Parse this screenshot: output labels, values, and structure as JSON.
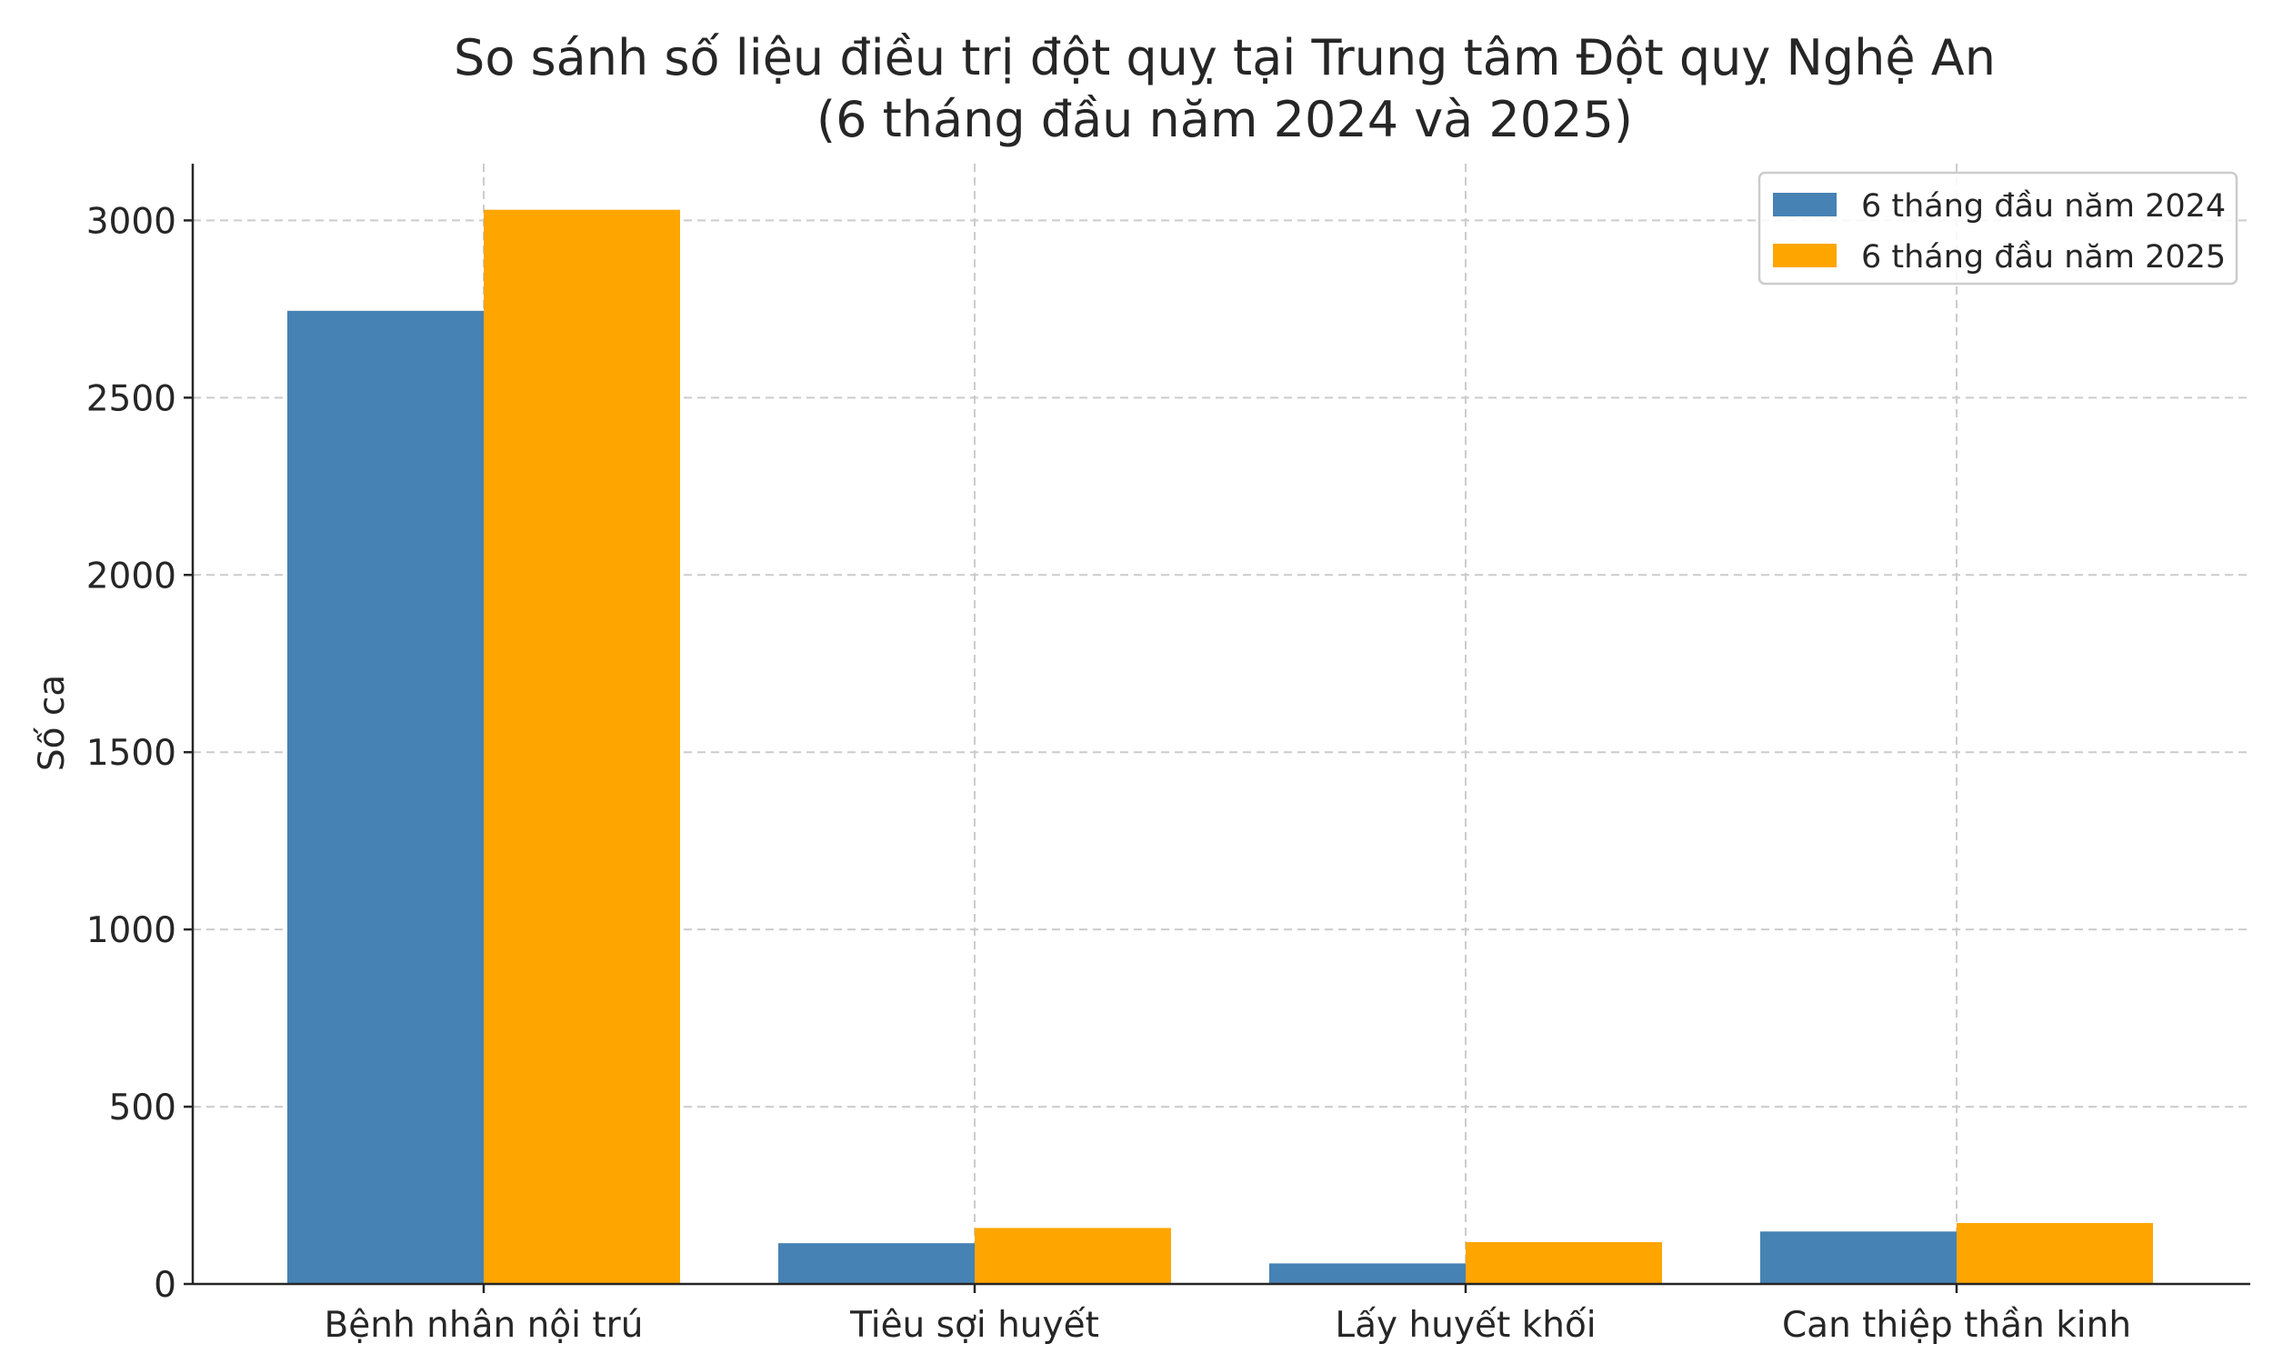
{
  "chart_data": {
    "type": "bar",
    "title": "So sánh số liệu điều trị đột quỵ tại Trung tâm Đột quỵ Nghệ An",
    "subtitle": "(6 tháng đầu năm 2024 và 2025)",
    "xlabel": "",
    "ylabel": "Số ca",
    "categories": [
      "Bệnh nhân nội trú",
      "Tiêu sợi huyết",
      "Lấy huyết khối",
      "Can thiệp thần kinh"
    ],
    "series": [
      {
        "name": "6 tháng đầu năm 2024",
        "color": "#4682b4",
        "values": [
          2745,
          115,
          58,
          148
        ]
      },
      {
        "name": "6 tháng đầu năm 2025",
        "color": "#ffa500",
        "values": [
          3030,
          158,
          118,
          172
        ]
      }
    ],
    "ylim": [
      0,
      3160
    ],
    "yticks": [
      0,
      500,
      1000,
      1500,
      2000,
      2500,
      3000
    ],
    "grid": true,
    "legend_position": "top-right"
  }
}
